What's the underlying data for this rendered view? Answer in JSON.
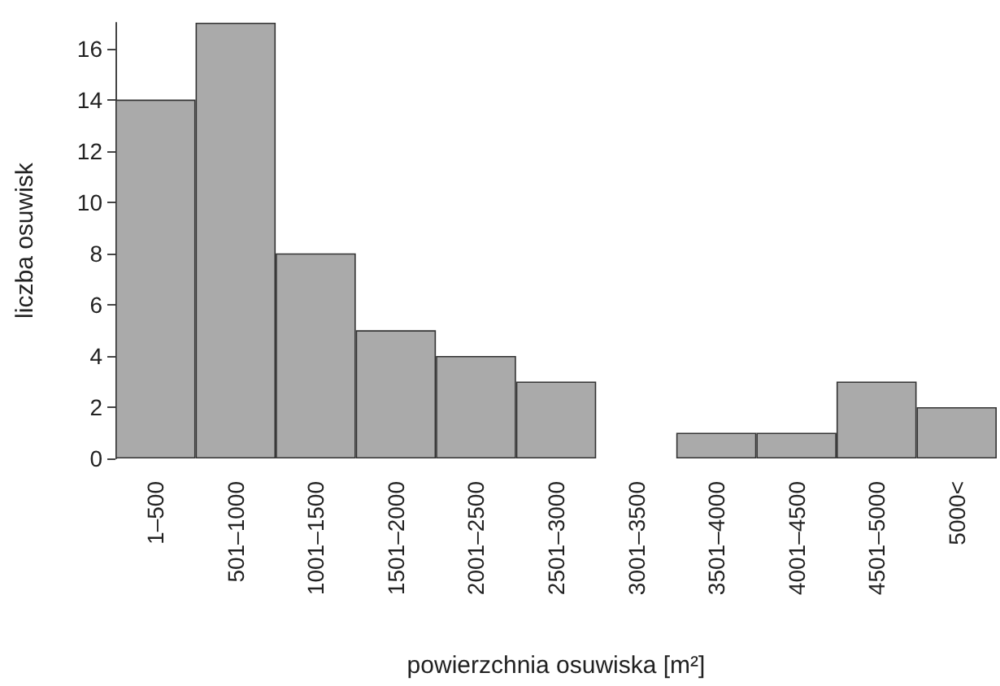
{
  "chart_data": {
    "type": "bar",
    "xlabel": "powierzchnia osuwiska [m²]",
    "ylabel": "liczba osuwisk",
    "categories": [
      "1–500",
      "501–1000",
      "1001–1500",
      "1501–2000",
      "2001–2500",
      "2501–3000",
      "3001–3500",
      "3501–4000",
      "4001–4500",
      "4501–5000",
      "5000<"
    ],
    "values": [
      14,
      17,
      8,
      5,
      4,
      3,
      0,
      1,
      1,
      3,
      2
    ],
    "color": "#aaaaaa",
    "ylim": [
      0,
      17
    ],
    "yticks": [
      0,
      2,
      4,
      6,
      8,
      10,
      12,
      14,
      16
    ],
    "grid": false
  }
}
